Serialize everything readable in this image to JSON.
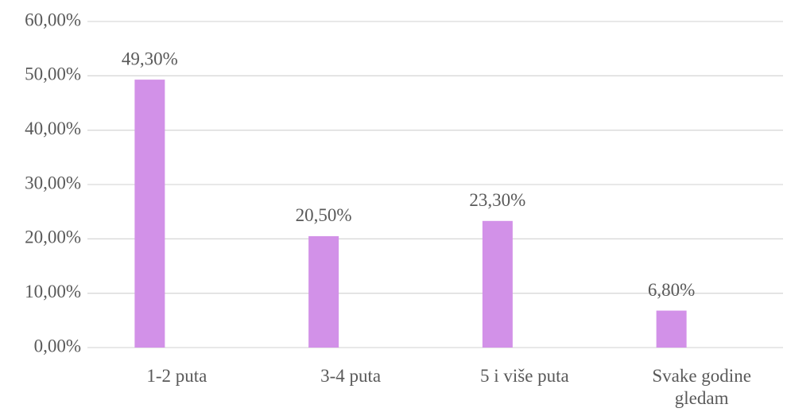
{
  "chart_data": {
    "type": "bar",
    "categories": [
      "1-2 puta",
      "3-4 puta",
      "5 i više puta",
      "Svake godine gledam"
    ],
    "values": [
      49.3,
      20.5,
      23.3,
      6.8
    ],
    "value_labels": [
      "49,30%",
      "20,50%",
      "23,30%",
      "6,80%"
    ],
    "color": "#d291e8",
    "ylim": [
      0,
      60
    ],
    "yticks": [
      {
        "value": 0,
        "label": "0,00%"
      },
      {
        "value": 10,
        "label": "10,00%"
      },
      {
        "value": 20,
        "label": "20,00%"
      },
      {
        "value": 30,
        "label": "30,00%"
      },
      {
        "value": 40,
        "label": "40,00%"
      },
      {
        "value": 50,
        "label": "50,00%"
      },
      {
        "value": 60,
        "label": "60,00%"
      }
    ],
    "grid": true
  }
}
